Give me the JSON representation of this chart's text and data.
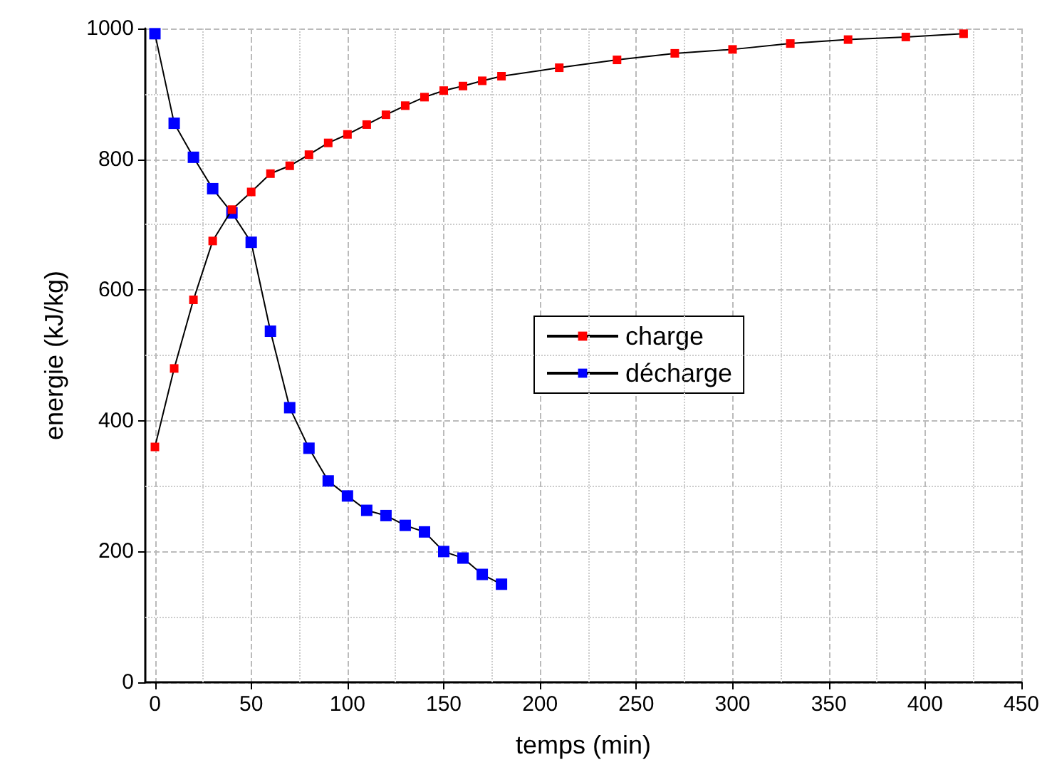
{
  "chart_data": {
    "type": "line",
    "xlabel": "temps (min)",
    "ylabel": "energie (kJ/kg)",
    "xlim": [
      -5,
      450
    ],
    "xticks": [
      0,
      50,
      100,
      150,
      200,
      250,
      300,
      350,
      400,
      450
    ],
    "ylim": [
      0,
      1000
    ],
    "yticks": [
      0,
      200,
      400,
      600,
      800,
      1000
    ],
    "grid": true,
    "legend": "center",
    "marker": "square",
    "line_style": "solid",
    "series": [
      {
        "name": "charge",
        "color": "#ff0000",
        "x": [
          0,
          10,
          20,
          30,
          40,
          50,
          60,
          70,
          80,
          90,
          100,
          110,
          120,
          130,
          140,
          150,
          160,
          170,
          180,
          210,
          240,
          270,
          300,
          330,
          360,
          390,
          420
        ],
        "values": [
          360,
          480,
          585,
          675,
          723,
          750,
          778,
          790,
          807,
          825,
          838,
          853,
          868,
          882,
          895,
          905,
          912,
          920,
          927,
          940,
          952,
          962,
          968,
          977,
          983,
          987,
          992
        ]
      },
      {
        "name": "décharge",
        "color": "#0000ff",
        "x": [
          0,
          10,
          20,
          30,
          40,
          50,
          60,
          70,
          80,
          90,
          100,
          110,
          120,
          130,
          140,
          150,
          160,
          170,
          180
        ],
        "values": [
          992,
          855,
          803,
          755,
          718,
          673,
          537,
          420,
          358,
          308,
          285,
          263,
          255,
          240,
          230,
          200,
          190,
          165,
          150
        ]
      }
    ]
  }
}
